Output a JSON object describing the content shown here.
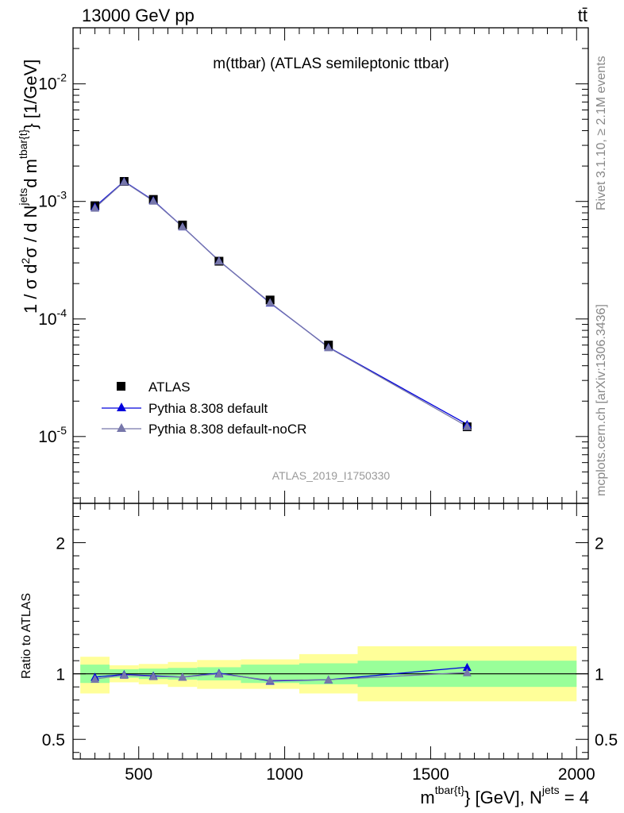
{
  "header": {
    "left": "13000 GeV pp",
    "right": "tt̄"
  },
  "side": {
    "rivet": "Rivet 3.1.10, ≥ 2.1M events",
    "mcplots": "mcplots.cern.ch [arXiv:1306.3436]"
  },
  "main_title": "m(ttbar) (ATLAS semileptonic ttbar)",
  "analysis_id": "ATLAS_2019_I1750330",
  "y_label_main": "1 / σ d²σ / d N^jets d m^tbar{t} [1/GeV]",
  "y_label_ratio": "Ratio to ATLAS",
  "x_label": "m^tbar{t} [GeV], N^jets = 4",
  "legend": {
    "data": "ATLAS",
    "mc1": "Pythia 8.308 default",
    "mc2": "Pythia 8.308 default-noCR"
  },
  "colors": {
    "data": "#000000",
    "mc1": "#0000dd",
    "mc2": "#7777aa",
    "band_inner": "#99ff99",
    "band_outer": "#ffff99"
  },
  "chart_data": {
    "type": "line",
    "x_unit": "GeV",
    "x_range": [
      275,
      2040
    ],
    "y_main_range": [
      2.7e-06,
      0.03
    ],
    "y_main_scale": "log",
    "y_ratio_range": [
      0.35,
      2.3
    ],
    "y_ticks_main_labels": [
      "10^-5",
      "10^-4",
      "10^-3",
      "10^-2"
    ],
    "x_ticks_labels": [
      "500",
      "1000",
      "1500",
      "2000"
    ],
    "ratio_tick_labels": [
      "0.5",
      "1",
      "2"
    ],
    "bins": [
      [
        300,
        400
      ],
      [
        400,
        500
      ],
      [
        500,
        600
      ],
      [
        600,
        700
      ],
      [
        700,
        850
      ],
      [
        850,
        1050
      ],
      [
        1050,
        1250
      ],
      [
        1250,
        2000
      ]
    ],
    "x": [
      350,
      450,
      550,
      650,
      775,
      950,
      1150,
      1625
    ],
    "series": [
      {
        "name": "ATLAS",
        "values": [
          0.00092,
          0.00148,
          0.00104,
          0.00063,
          0.00031,
          0.000145,
          6e-05,
          1.21e-05
        ]
      },
      {
        "name": "Pythia 8.308 default",
        "values": [
          0.0009,
          0.00148,
          0.00102,
          0.00061,
          0.000313,
          0.000137,
          5.75e-05,
          1.27e-05
        ]
      },
      {
        "name": "Pythia 8.308 default-noCR",
        "values": [
          0.00088,
          0.00147,
          0.00101,
          0.00061,
          0.000312,
          0.000138,
          5.72e-05,
          1.22e-05
        ]
      }
    ],
    "ratio": {
      "Pythia 8.308 default": [
        0.975,
        0.995,
        0.985,
        0.975,
        1.005,
        0.945,
        0.955,
        1.05
      ],
      "Pythia 8.308 default-noCR": [
        0.96,
        0.99,
        0.98,
        0.975,
        1.0,
        0.95,
        0.955,
        1.01
      ]
    },
    "uncertainty_inner": [
      [
        0.93,
        1.07
      ],
      [
        0.97,
        1.035
      ],
      [
        0.96,
        1.04
      ],
      [
        0.955,
        1.045
      ],
      [
        0.95,
        1.05
      ],
      [
        0.93,
        1.07
      ],
      [
        0.92,
        1.08
      ],
      [
        0.9,
        1.1
      ]
    ],
    "uncertainty_outer": [
      [
        0.85,
        1.13
      ],
      [
        0.935,
        1.065
      ],
      [
        0.92,
        1.075
      ],
      [
        0.9,
        1.09
      ],
      [
        0.885,
        1.105
      ],
      [
        0.885,
        1.11
      ],
      [
        0.85,
        1.15
      ],
      [
        0.79,
        1.21
      ]
    ]
  }
}
